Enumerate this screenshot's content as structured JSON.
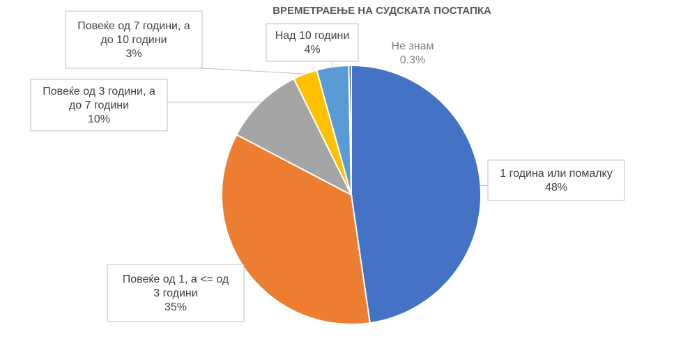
{
  "chart_data": {
    "type": "pie",
    "title": "ВРЕМЕТРАЕЊЕ НА СУДСКАТА ПОСТАПКА",
    "slices": [
      {
        "label_lines": [
          "1 година или помалку"
        ],
        "percent_label": "48%",
        "value": 47.7,
        "color": "#4472C4"
      },
      {
        "label_lines": [
          "Повеќе од 1, а <= од",
          "3 години"
        ],
        "percent_label": "35%",
        "value": 35.0,
        "color": "#ED7D31"
      },
      {
        "label_lines": [
          "Повеќе од 3 години, а",
          "до 7 години"
        ],
        "percent_label": "10%",
        "value": 10.0,
        "color": "#A5A5A5"
      },
      {
        "label_lines": [
          "Повеќе од 7 години, а",
          "до 10 години"
        ],
        "percent_label": "3%",
        "value": 3.0,
        "color": "#FFC000"
      },
      {
        "label_lines": [
          "Над 10 години"
        ],
        "percent_label": "4%",
        "value": 4.0,
        "color": "#5B9BD5"
      },
      {
        "label_lines": [
          "Не знам"
        ],
        "percent_label": "0.3%",
        "value": 0.3,
        "color": "#264478"
      }
    ],
    "start_angle": "top, clockwise",
    "legend": "none (data labels with callouts)"
  }
}
